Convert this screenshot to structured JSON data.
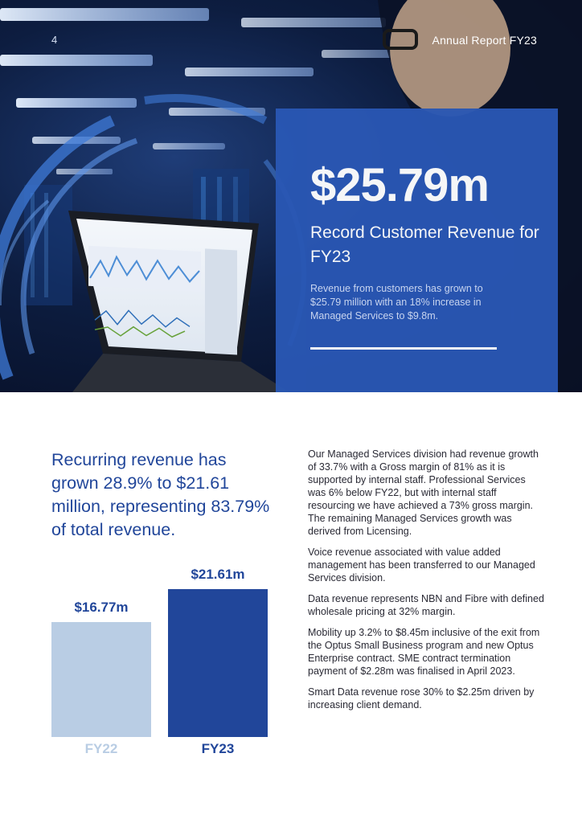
{
  "header": {
    "page_number": "4",
    "running_title": "Annual Report FY23"
  },
  "feature": {
    "value": "$25.79m",
    "heading": "Record Customer Revenue for FY23",
    "text": "Revenue from customers has grown to $25.79 million with an 18% increase in Managed Services to $9.8m."
  },
  "headline": "Recurring revenue has grown 28.9% to $21.61 million, representing 83.79% of total revenue.",
  "chart_data": {
    "type": "bar",
    "categories": [
      "FY22",
      "FY23"
    ],
    "values": [
      16.77,
      21.61
    ],
    "value_labels": [
      "$16.77m",
      "$21.61m"
    ],
    "colors": [
      "#b9cde4",
      "#21469a"
    ],
    "title": "",
    "xlabel": "",
    "ylabel": "",
    "ylim": [
      0,
      21.61
    ],
    "grid": false
  },
  "body_paragraphs": [
    "Our Managed Services division had revenue growth of 33.7% with a Gross margin of 81% as it is supported by internal staff. Professional Services was 6% below FY22, but with internal staff resourcing we have achieved a 73% gross margin. The remaining Managed Services growth was derived from Licensing.",
    "Voice revenue associated with value added management has been transferred to our Managed Services division.",
    "Data revenue represents NBN and Fibre with defined wholesale pricing at 32% margin.",
    "Mobility up 3.2% to $8.45m inclusive of the exit from the Optus Small Business program and new Optus Enterprise contract. SME contract termination payment of $2.28m was finalised in April 2023.",
    "Smart Data revenue rose 30% to $2.25m driven by increasing client demand."
  ]
}
